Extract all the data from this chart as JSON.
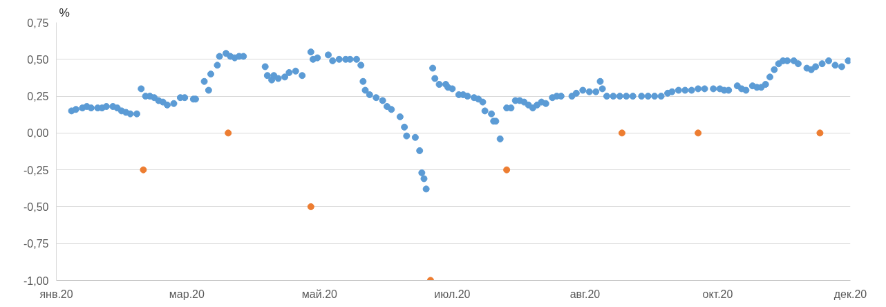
{
  "chart_data": {
    "type": "scatter",
    "ylabel": "%",
    "grid": true,
    "marker": "circle",
    "xlim": [
      "2020-01-01",
      "2020-12-31"
    ],
    "xticks": [
      {
        "value": "2020-01-01",
        "label": "янв.20"
      },
      {
        "value": "2020-03-01",
        "label": "мар.20"
      },
      {
        "value": "2020-05-01",
        "label": "май.20"
      },
      {
        "value": "2020-07-01",
        "label": "июл.20"
      },
      {
        "value": "2020-08-31",
        "label": "авг.20"
      },
      {
        "value": "2020-10-31",
        "label": "окт.20"
      },
      {
        "value": "2020-12-31",
        "label": "дек.20"
      }
    ],
    "ylim": [
      -1.0,
      0.75
    ],
    "yticks": [
      {
        "value": -1.0,
        "label": "-1,00"
      },
      {
        "value": -0.75,
        "label": "-0,75"
      },
      {
        "value": -0.5,
        "label": "-0,50"
      },
      {
        "value": -0.25,
        "label": "-0,25"
      },
      {
        "value": 0,
        "label": "0,00"
      },
      {
        "value": 0.25,
        "label": "0,25"
      },
      {
        "value": 0.5,
        "label": "0,50"
      },
      {
        "value": 0.75,
        "label": "0,75"
      }
    ],
    "series": [
      {
        "color": "#5b9bd5",
        "x": [
          "2020-01-08",
          "2020-01-10",
          "2020-01-13",
          "2020-01-15",
          "2020-01-17",
          "2020-01-20",
          "2020-01-22",
          "2020-01-24",
          "2020-01-27",
          "2020-01-29",
          "2020-01-31",
          "2020-02-02",
          "2020-02-04",
          "2020-02-07",
          "2020-02-09",
          "2020-02-11",
          "2020-02-13",
          "2020-02-15",
          "2020-02-17",
          "2020-02-19",
          "2020-02-21",
          "2020-02-24",
          "2020-02-27",
          "2020-02-29",
          "2020-03-04",
          "2020-03-05",
          "2020-03-09",
          "2020-03-11",
          "2020-03-12",
          "2020-03-15",
          "2020-03-16",
          "2020-03-19",
          "2020-03-21",
          "2020-03-23",
          "2020-03-25",
          "2020-03-27",
          "2020-04-06",
          "2020-04-07",
          "2020-04-09",
          "2020-04-10",
          "2020-04-12",
          "2020-04-15",
          "2020-04-17",
          "2020-04-20",
          "2020-04-23",
          "2020-04-27",
          "2020-04-28",
          "2020-04-30",
          "2020-05-05",
          "2020-05-07",
          "2020-05-10",
          "2020-05-13",
          "2020-05-15",
          "2020-05-18",
          "2020-05-20",
          "2020-05-21",
          "2020-05-22",
          "2020-05-24",
          "2020-05-27",
          "2020-05-30",
          "2020-06-01",
          "2020-06-03",
          "2020-06-07",
          "2020-06-09",
          "2020-06-10",
          "2020-06-14",
          "2020-06-16",
          "2020-06-17",
          "2020-06-18",
          "2020-06-19",
          "2020-06-22",
          "2020-06-23",
          "2020-06-25",
          "2020-06-28",
          "2020-06-29",
          "2020-07-01",
          "2020-07-04",
          "2020-07-06",
          "2020-07-08",
          "2020-07-11",
          "2020-07-13",
          "2020-07-15",
          "2020-07-16",
          "2020-07-19",
          "2020-07-20",
          "2020-07-21",
          "2020-07-23",
          "2020-07-26",
          "2020-07-28",
          "2020-07-30",
          "2020-08-01",
          "2020-08-03",
          "2020-08-05",
          "2020-08-07",
          "2020-08-09",
          "2020-08-11",
          "2020-08-13",
          "2020-08-16",
          "2020-08-18",
          "2020-08-20",
          "2020-08-25",
          "2020-08-27",
          "2020-08-30",
          "2020-09-02",
          "2020-09-05",
          "2020-09-07",
          "2020-09-08",
          "2020-09-10",
          "2020-09-13",
          "2020-09-16",
          "2020-09-19",
          "2020-09-22",
          "2020-09-26",
          "2020-09-29",
          "2020-10-02",
          "2020-10-05",
          "2020-10-08",
          "2020-10-10",
          "2020-10-13",
          "2020-10-16",
          "2020-10-19",
          "2020-10-22",
          "2020-10-25",
          "2020-10-29",
          "2020-11-01",
          "2020-11-03",
          "2020-11-05",
          "2020-11-09",
          "2020-11-11",
          "2020-11-13",
          "2020-11-16",
          "2020-11-18",
          "2020-11-20",
          "2020-11-22",
          "2020-11-24",
          "2020-11-26",
          "2020-11-28",
          "2020-11-30",
          "2020-12-02",
          "2020-12-05",
          "2020-12-07",
          "2020-12-11",
          "2020-12-13",
          "2020-12-15",
          "2020-12-18",
          "2020-12-21",
          "2020-12-24",
          "2020-12-27",
          "2020-12-30"
        ],
        "values": [
          0.15,
          0.16,
          0.17,
          0.18,
          0.17,
          0.17,
          0.17,
          0.18,
          0.18,
          0.17,
          0.15,
          0.14,
          0.13,
          0.13,
          0.3,
          0.25,
          0.25,
          0.24,
          0.22,
          0.21,
          0.19,
          0.2,
          0.24,
          0.24,
          0.23,
          0.23,
          0.35,
          0.29,
          0.4,
          0.46,
          0.52,
          0.54,
          0.52,
          0.51,
          0.52,
          0.52,
          0.45,
          0.39,
          0.36,
          0.39,
          0.37,
          0.38,
          0.41,
          0.42,
          0.39,
          0.55,
          0.5,
          0.51,
          0.53,
          0.49,
          0.5,
          0.5,
          0.5,
          0.5,
          0.46,
          0.35,
          0.29,
          0.26,
          0.24,
          0.22,
          0.18,
          0.16,
          0.11,
          0.04,
          -0.02,
          -0.03,
          -0.12,
          -0.27,
          -0.31,
          -0.38,
          0.44,
          0.37,
          0.33,
          0.33,
          0.31,
          0.3,
          0.26,
          0.26,
          0.25,
          0.24,
          0.23,
          0.21,
          0.15,
          0.13,
          0.08,
          0.08,
          -0.04,
          0.17,
          0.17,
          0.22,
          0.22,
          0.21,
          0.19,
          0.17,
          0.19,
          0.21,
          0.2,
          0.24,
          0.25,
          0.25,
          0.25,
          0.27,
          0.29,
          0.28,
          0.28,
          0.35,
          0.3,
          0.25,
          0.25,
          0.25,
          0.25,
          0.25,
          0.25,
          0.25,
          0.25,
          0.25,
          0.27,
          0.28,
          0.29,
          0.29,
          0.29,
          0.3,
          0.3,
          0.3,
          0.3,
          0.29,
          0.29,
          0.32,
          0.3,
          0.29,
          0.32,
          0.31,
          0.31,
          0.33,
          0.38,
          0.43,
          0.47,
          0.49,
          0.49,
          0.49,
          0.47,
          0.44,
          0.43,
          0.45,
          0.47,
          0.49,
          0.46,
          0.45,
          0.49
        ]
      },
      {
        "color": "#ed7d31",
        "x": [
          "2020-02-10",
          "2020-03-20",
          "2020-04-27",
          "2020-06-21",
          "2020-07-26",
          "2020-09-17",
          "2020-10-22",
          "2020-12-17"
        ],
        "values": [
          -0.25,
          0,
          -0.5,
          -1.0,
          -0.25,
          0,
          0,
          0
        ]
      }
    ]
  }
}
